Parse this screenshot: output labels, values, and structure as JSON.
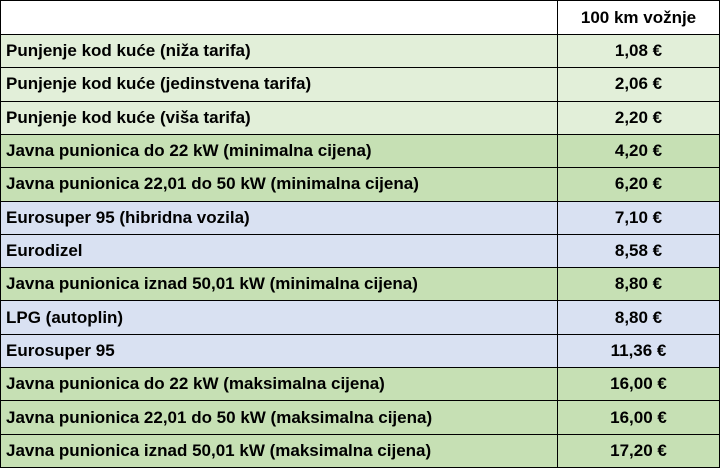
{
  "table": {
    "header": "100 km vožnje",
    "rows": [
      [
        "Punjenje kod kuće (niža tarifa)",
        "1,08 €"
      ],
      [
        "Punjenje kod kuće (jedinstvena tarifa)",
        "2,06 €"
      ],
      [
        "Punjenje kod kuće (viša tarifa)",
        "2,20 €"
      ],
      [
        "Javna punionica do 22 kW (minimalna cijena)",
        "4,20 €"
      ],
      [
        "Javna punionica 22,01 do 50 kW (minimalna cijena)",
        "6,20 €"
      ],
      [
        "Eurosuper 95 (hibridna vozila)",
        "7,10 €"
      ],
      [
        "Eurodizel",
        "8,58 €"
      ],
      [
        "Javna punionica iznad 50,01 kW (minimalna cijena)",
        "8,80 €"
      ],
      [
        "LPG (autoplin)",
        "8,80 €"
      ],
      [
        "Eurosuper 95",
        "11,36 €"
      ],
      [
        "Javna punionica do 22 kW (maksimalna cijena)",
        "16,00 €"
      ],
      [
        "Javna punionica 22,01 do 50 kW (maksimalna cijena)",
        "16,00 €"
      ],
      [
        "Javna punionica iznad 50,01 kW (maksimalna cijena)",
        "17,20 €"
      ]
    ]
  }
}
